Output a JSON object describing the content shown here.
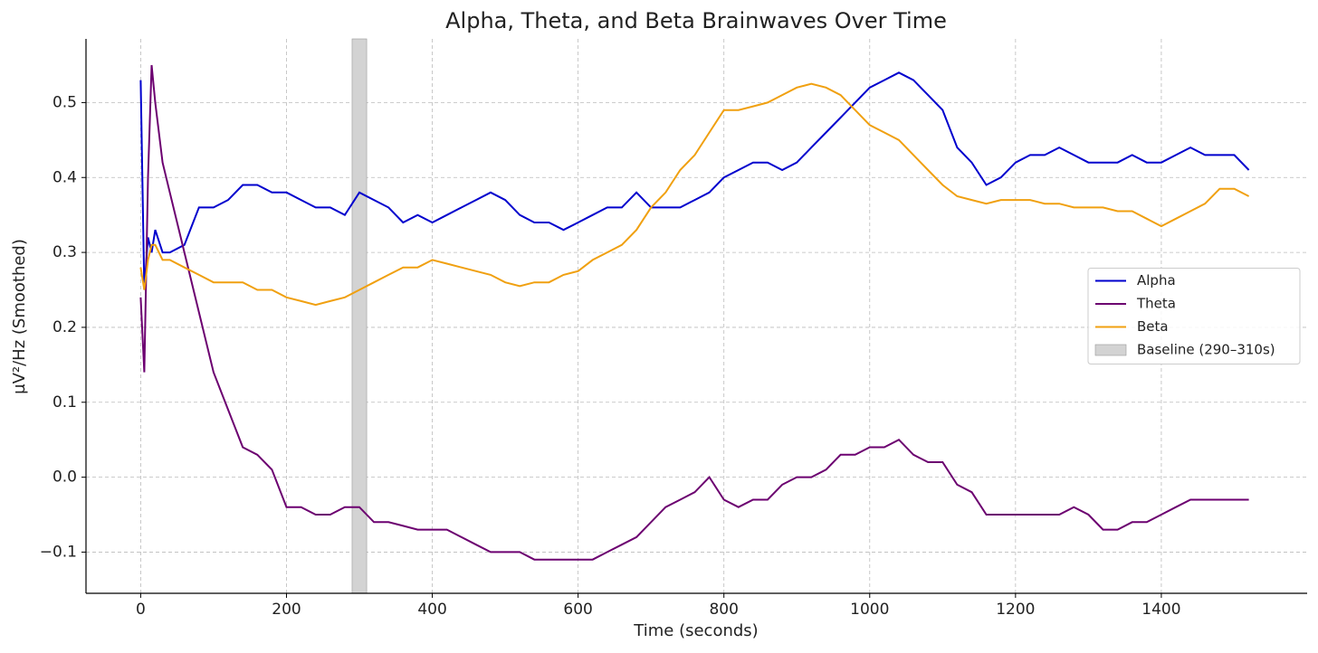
{
  "chart_data": {
    "type": "line",
    "title": "Alpha, Theta, and Beta Brainwaves Over Time",
    "xlabel": "Time (seconds)",
    "ylabel": "µV²/Hz (Smoothed)",
    "x": [
      0,
      5,
      10,
      15,
      20,
      30,
      40,
      60,
      80,
      100,
      120,
      140,
      160,
      180,
      200,
      220,
      240,
      260,
      280,
      300,
      320,
      340,
      360,
      380,
      400,
      420,
      440,
      460,
      480,
      500,
      520,
      540,
      560,
      580,
      600,
      620,
      640,
      660,
      680,
      700,
      720,
      740,
      760,
      780,
      800,
      820,
      840,
      860,
      880,
      900,
      920,
      940,
      960,
      980,
      1000,
      1020,
      1040,
      1060,
      1080,
      1100,
      1120,
      1140,
      1160,
      1180,
      1200,
      1220,
      1240,
      1260,
      1280,
      1300,
      1320,
      1340,
      1360,
      1380,
      1400,
      1420,
      1440,
      1460,
      1480,
      1500,
      1520
    ],
    "series": [
      {
        "name": "Alpha",
        "color": "#0000cd",
        "values": [
          0.53,
          0.25,
          0.32,
          0.3,
          0.33,
          0.3,
          0.3,
          0.31,
          0.36,
          0.36,
          0.37,
          0.39,
          0.39,
          0.38,
          0.38,
          0.37,
          0.36,
          0.36,
          0.35,
          0.38,
          0.37,
          0.36,
          0.34,
          0.35,
          0.34,
          0.35,
          0.36,
          0.37,
          0.38,
          0.37,
          0.35,
          0.34,
          0.34,
          0.33,
          0.34,
          0.35,
          0.36,
          0.36,
          0.38,
          0.36,
          0.36,
          0.36,
          0.37,
          0.38,
          0.4,
          0.41,
          0.42,
          0.42,
          0.41,
          0.42,
          0.44,
          0.46,
          0.48,
          0.5,
          0.52,
          0.53,
          0.54,
          0.53,
          0.51,
          0.49,
          0.44,
          0.42,
          0.39,
          0.4,
          0.42,
          0.43,
          0.43,
          0.44,
          0.43,
          0.42,
          0.42,
          0.42,
          0.43,
          0.42,
          0.42,
          0.43,
          0.44,
          0.43,
          0.43,
          0.43,
          0.41
        ]
      },
      {
        "name": "Theta",
        "color": "#6c0070",
        "values": [
          0.24,
          0.14,
          0.4,
          0.55,
          0.5,
          0.42,
          0.38,
          0.3,
          0.22,
          0.14,
          0.09,
          0.04,
          0.03,
          0.01,
          -0.04,
          -0.04,
          -0.05,
          -0.05,
          -0.04,
          -0.04,
          -0.06,
          -0.06,
          -0.065,
          -0.07,
          -0.07,
          -0.07,
          -0.08,
          -0.09,
          -0.1,
          -0.1,
          -0.1,
          -0.11,
          -0.11,
          -0.11,
          -0.11,
          -0.11,
          -0.1,
          -0.09,
          -0.08,
          -0.06,
          -0.04,
          -0.03,
          -0.02,
          0.0,
          -0.03,
          -0.04,
          -0.03,
          -0.03,
          -0.01,
          0.0,
          0.0,
          0.01,
          0.03,
          0.03,
          0.04,
          0.04,
          0.05,
          0.03,
          0.02,
          0.02,
          -0.01,
          -0.02,
          -0.05,
          -0.05,
          -0.05,
          -0.05,
          -0.05,
          -0.05,
          -0.04,
          -0.05,
          -0.07,
          -0.07,
          -0.06,
          -0.06,
          -0.05,
          -0.04,
          -0.03,
          -0.03,
          -0.03,
          -0.03,
          -0.03
        ]
      },
      {
        "name": "Beta",
        "color": "#f0a010",
        "values": [
          0.28,
          0.25,
          0.29,
          0.31,
          0.31,
          0.29,
          0.29,
          0.28,
          0.27,
          0.26,
          0.26,
          0.26,
          0.25,
          0.25,
          0.24,
          0.235,
          0.23,
          0.235,
          0.24,
          0.25,
          0.26,
          0.27,
          0.28,
          0.28,
          0.29,
          0.285,
          0.28,
          0.275,
          0.27,
          0.26,
          0.255,
          0.26,
          0.26,
          0.27,
          0.275,
          0.29,
          0.3,
          0.31,
          0.33,
          0.36,
          0.38,
          0.41,
          0.43,
          0.46,
          0.49,
          0.49,
          0.495,
          0.5,
          0.51,
          0.52,
          0.525,
          0.52,
          0.51,
          0.49,
          0.47,
          0.46,
          0.45,
          0.43,
          0.41,
          0.39,
          0.375,
          0.37,
          0.365,
          0.37,
          0.37,
          0.37,
          0.365,
          0.365,
          0.36,
          0.36,
          0.36,
          0.355,
          0.355,
          0.345,
          0.335,
          0.345,
          0.355,
          0.365,
          0.385,
          0.385,
          0.375
        ]
      }
    ],
    "baseline": {
      "label": "Baseline (290–310s)",
      "range": [
        290,
        310
      ],
      "color": "#d3d3d3"
    },
    "xlim": [
      -75,
      1600
    ],
    "ylim": [
      -0.155,
      0.585
    ],
    "xticks": [
      0,
      200,
      400,
      600,
      800,
      1000,
      1200,
      1400
    ],
    "yticks": [
      {
        "value": -0.1,
        "label": "−0.1"
      },
      {
        "value": 0,
        "label": "0.0"
      },
      0.1,
      0.2,
      0.3,
      0.4,
      0.5
    ],
    "grid": true,
    "legend": "center right"
  }
}
